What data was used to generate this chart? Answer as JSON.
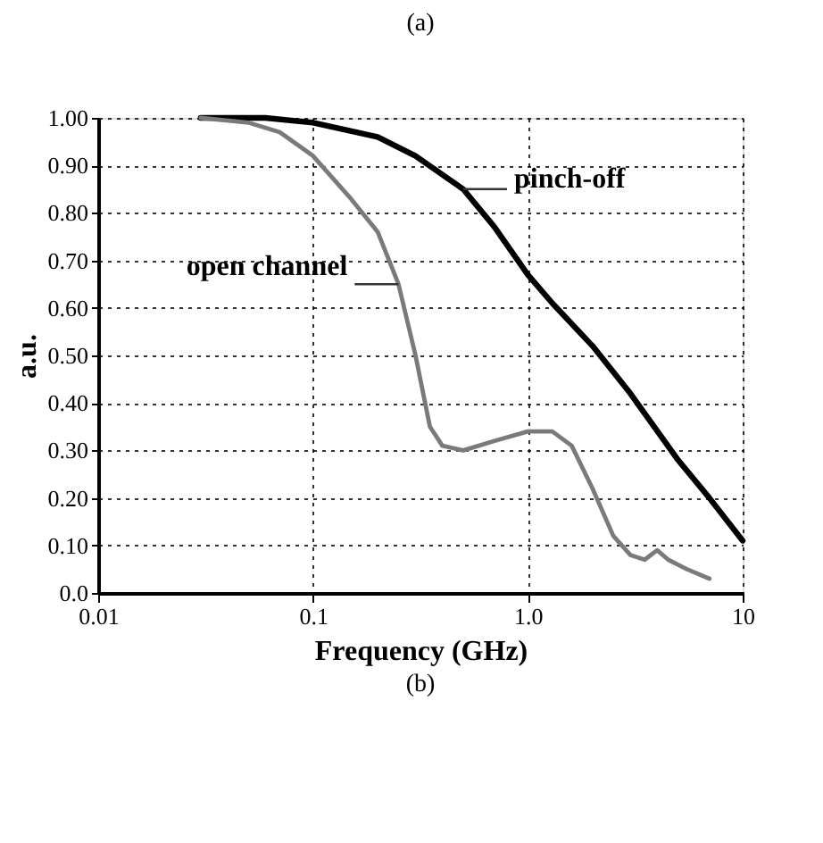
{
  "chart_data": {
    "type": "line",
    "xlabel": "Frequency (GHz)",
    "ylabel": "a.u.",
    "log": "x",
    "grid": true,
    "legend": false,
    "xlim": [
      0.01,
      10
    ],
    "xticks": [
      0.01,
      0.1,
      {
        "value": 1,
        "label": "1.0"
      },
      10
    ],
    "ylim": [
      0,
      1
    ],
    "yticks": [
      {
        "value": 0,
        "label": "0.0"
      },
      {
        "value": 0.1,
        "label": "0.10"
      },
      {
        "value": 0.2,
        "label": "0.20"
      },
      {
        "value": 0.3,
        "label": "0.30"
      },
      {
        "value": 0.4,
        "label": "0.40"
      },
      {
        "value": 0.5,
        "label": "0.50"
      },
      {
        "value": 0.6,
        "label": "0.60"
      },
      {
        "value": 0.7,
        "label": "0.70"
      },
      {
        "value": 0.8,
        "label": "0.80"
      },
      {
        "value": 0.9,
        "label": "0.90"
      },
      {
        "value": 1,
        "label": "1.00"
      }
    ],
    "annotations": [
      "(a)",
      "(b)"
    ],
    "series": [
      {
        "name": "pinch-off",
        "color": "#000000",
        "x": [
          0.03,
          0.06,
          0.1,
          0.2,
          0.3,
          0.5,
          0.7,
          1.0,
          1.3,
          2,
          3,
          5,
          7,
          10
        ],
        "values": [
          1.0,
          1.0,
          0.99,
          0.96,
          0.92,
          0.85,
          0.77,
          0.67,
          0.61,
          0.52,
          0.42,
          0.28,
          0.2,
          0.11
        ]
      },
      {
        "name": "open channel",
        "color": "#7a7a7a",
        "x": [
          0.03,
          0.05,
          0.07,
          0.1,
          0.15,
          0.2,
          0.25,
          0.3,
          0.35,
          0.4,
          0.5,
          0.7,
          1.0,
          1.3,
          1.6,
          2,
          2.5,
          3,
          3.5,
          4,
          4.5,
          5.5,
          7
        ],
        "values": [
          1.0,
          0.99,
          0.97,
          0.92,
          0.83,
          0.76,
          0.65,
          0.5,
          0.35,
          0.31,
          0.3,
          0.32,
          0.34,
          0.34,
          0.31,
          0.22,
          0.12,
          0.08,
          0.07,
          0.09,
          0.07,
          0.05,
          0.03
        ]
      }
    ]
  }
}
